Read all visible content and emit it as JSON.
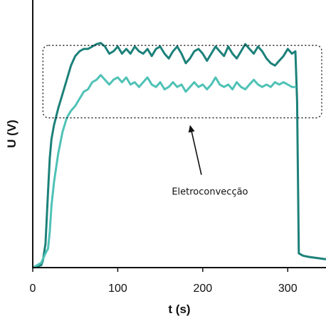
{
  "chart_data": {
    "type": "line",
    "title": "",
    "xlabel": "t (s)",
    "ylabel": "U (V)",
    "xlim": [
      0,
      345
    ],
    "ylim": [
      0,
      1
    ],
    "x_ticks": [
      0,
      100,
      200,
      300
    ],
    "x_tick_labels": [
      "0",
      "100",
      "200",
      "300"
    ],
    "y_ticks": [],
    "grid": false,
    "colors": {
      "series_1": "#1c8179",
      "series_2": "#4fc2b6",
      "annotation": "#111111"
    },
    "series": [
      {
        "name": "",
        "x": [
          0,
          10,
          12,
          15,
          18,
          20,
          22,
          25,
          30,
          35,
          40,
          45,
          50,
          55,
          60,
          65,
          70,
          75,
          80,
          85,
          90,
          95,
          100,
          105,
          110,
          115,
          120,
          125,
          130,
          135,
          140,
          145,
          150,
          155,
          160,
          165,
          170,
          175,
          180,
          185,
          190,
          195,
          200,
          205,
          210,
          215,
          220,
          225,
          230,
          235,
          240,
          245,
          250,
          255,
          260,
          265,
          270,
          275,
          280,
          285,
          290,
          295,
          300,
          305,
          309,
          311,
          313,
          318,
          325,
          335,
          345
        ],
        "y": [
          0.0,
          0.01,
          0.03,
          0.1,
          0.32,
          0.46,
          0.54,
          0.6,
          0.67,
          0.73,
          0.79,
          0.85,
          0.89,
          0.91,
          0.92,
          0.92,
          0.93,
          0.94,
          0.945,
          0.93,
          0.9,
          0.91,
          0.93,
          0.9,
          0.92,
          0.9,
          0.93,
          0.91,
          0.9,
          0.92,
          0.89,
          0.92,
          0.93,
          0.9,
          0.88,
          0.91,
          0.93,
          0.9,
          0.86,
          0.88,
          0.91,
          0.92,
          0.9,
          0.87,
          0.9,
          0.93,
          0.91,
          0.89,
          0.93,
          0.9,
          0.88,
          0.91,
          0.94,
          0.92,
          0.9,
          0.93,
          0.91,
          0.88,
          0.86,
          0.85,
          0.87,
          0.89,
          0.92,
          0.9,
          0.91,
          0.7,
          0.06,
          0.05,
          0.045,
          0.04,
          0.035
        ]
      },
      {
        "name": "",
        "x": [
          0,
          10,
          15,
          18,
          20,
          22,
          25,
          30,
          35,
          40,
          45,
          50,
          55,
          60,
          65,
          70,
          75,
          80,
          85,
          90,
          95,
          100,
          105,
          110,
          115,
          120,
          125,
          130,
          135,
          140,
          145,
          150,
          155,
          160,
          165,
          170,
          175,
          180,
          185,
          190,
          195,
          200,
          205,
          210,
          215,
          220,
          225,
          230,
          235,
          240,
          245,
          250,
          255,
          260,
          265,
          270,
          275,
          280,
          285,
          290,
          295,
          300,
          305,
          310
        ],
        "y": [
          0.0,
          0.02,
          0.06,
          0.08,
          0.15,
          0.26,
          0.36,
          0.48,
          0.57,
          0.63,
          0.66,
          0.68,
          0.71,
          0.74,
          0.75,
          0.78,
          0.79,
          0.81,
          0.79,
          0.77,
          0.79,
          0.8,
          0.78,
          0.8,
          0.77,
          0.78,
          0.76,
          0.78,
          0.8,
          0.77,
          0.76,
          0.78,
          0.75,
          0.76,
          0.78,
          0.76,
          0.77,
          0.74,
          0.76,
          0.78,
          0.76,
          0.77,
          0.75,
          0.77,
          0.8,
          0.77,
          0.76,
          0.77,
          0.75,
          0.78,
          0.76,
          0.75,
          0.77,
          0.79,
          0.77,
          0.76,
          0.77,
          0.76,
          0.78,
          0.77,
          0.78,
          0.77,
          0.76,
          0.76
        ]
      }
    ],
    "annotation": {
      "label": "Eletroconvecção",
      "region": {
        "x": [
          12,
          345
        ],
        "y": [
          0.63,
          0.935
        ]
      },
      "arrow_target": {
        "x": 185,
        "y": 0.6
      }
    }
  }
}
